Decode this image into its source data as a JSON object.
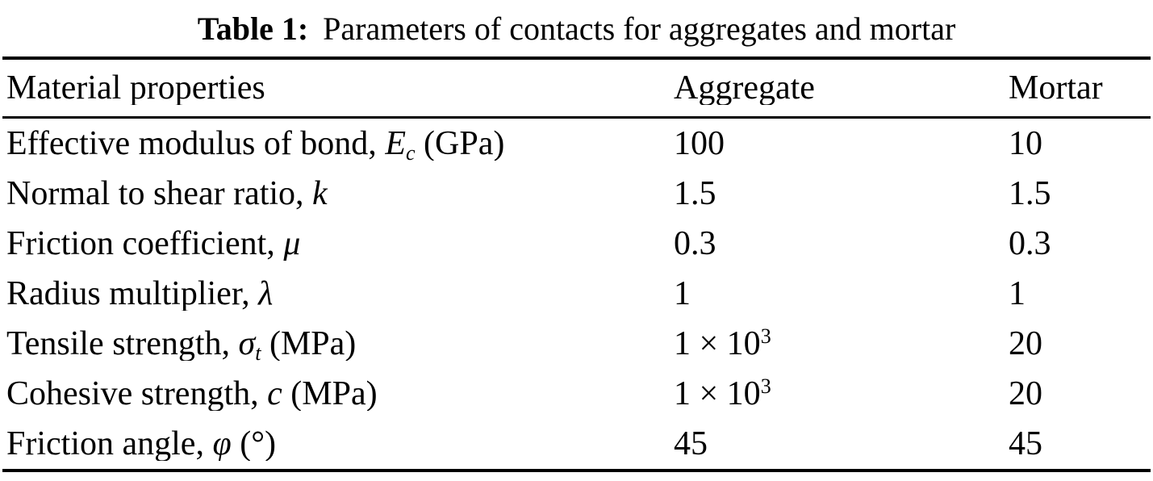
{
  "caption": {
    "label": "Table 1:",
    "text": "Parameters of contacts for aggregates and mortar"
  },
  "table": {
    "headers": [
      "Material properties",
      "Aggregate",
      "Mortar"
    ],
    "rows": [
      {
        "property": {
          "pre": "Effective modulus of bond, ",
          "sym": "E",
          "sub": "c",
          "post": " (GPa)"
        },
        "aggregate": {
          "base": "100",
          "sup": ""
        },
        "mortar": {
          "base": "10",
          "sup": ""
        }
      },
      {
        "property": {
          "pre": "Normal to shear ratio, ",
          "sym": "k",
          "sub": "",
          "post": ""
        },
        "aggregate": {
          "base": "1.5",
          "sup": ""
        },
        "mortar": {
          "base": "1.5",
          "sup": ""
        }
      },
      {
        "property": {
          "pre": "Friction coefficient, ",
          "sym": "μ",
          "sub": "",
          "post": ""
        },
        "aggregate": {
          "base": "0.3",
          "sup": ""
        },
        "mortar": {
          "base": "0.3",
          "sup": ""
        }
      },
      {
        "property": {
          "pre": "Radius multiplier, ",
          "sym": "λ",
          "sub": "",
          "post": ""
        },
        "aggregate": {
          "base": "1",
          "sup": ""
        },
        "mortar": {
          "base": "1",
          "sup": ""
        }
      },
      {
        "property": {
          "pre": "Tensile strength, ",
          "sym": "σ",
          "sub": "t",
          "post": " (MPa)"
        },
        "aggregate": {
          "base": "1 × 10",
          "sup": "3"
        },
        "mortar": {
          "base": "20",
          "sup": ""
        }
      },
      {
        "property": {
          "pre": "Cohesive strength, ",
          "sym": "c",
          "sub": "",
          "post": " (MPa)"
        },
        "aggregate": {
          "base": "1 × 10",
          "sup": "3"
        },
        "mortar": {
          "base": "20",
          "sup": ""
        }
      },
      {
        "property": {
          "pre": "Friction angle, ",
          "sym": "φ",
          "sub": "",
          "post": " (°)"
        },
        "aggregate": {
          "base": "45",
          "sup": ""
        },
        "mortar": {
          "base": "45",
          "sup": ""
        }
      }
    ]
  },
  "chart_data": {
    "type": "table",
    "title": "Table 1: Parameters of contacts for aggregates and mortar",
    "columns": [
      "Material properties",
      "Aggregate",
      "Mortar"
    ],
    "rows": [
      [
        "Effective modulus of bond, Ec (GPa)",
        "100",
        "10"
      ],
      [
        "Normal to shear ratio, k",
        "1.5",
        "1.5"
      ],
      [
        "Friction coefficient, μ",
        "0.3",
        "0.3"
      ],
      [
        "Radius multiplier, λ",
        "1",
        "1"
      ],
      [
        "Tensile strength, σt (MPa)",
        "1 × 10³",
        "20"
      ],
      [
        "Cohesive strength, c (MPa)",
        "1 × 10³",
        "20"
      ],
      [
        "Friction angle, φ (°)",
        "45",
        "45"
      ]
    ]
  },
  "colors": {
    "background": "#ffffff",
    "text": "#000000",
    "rule": "#000000"
  }
}
